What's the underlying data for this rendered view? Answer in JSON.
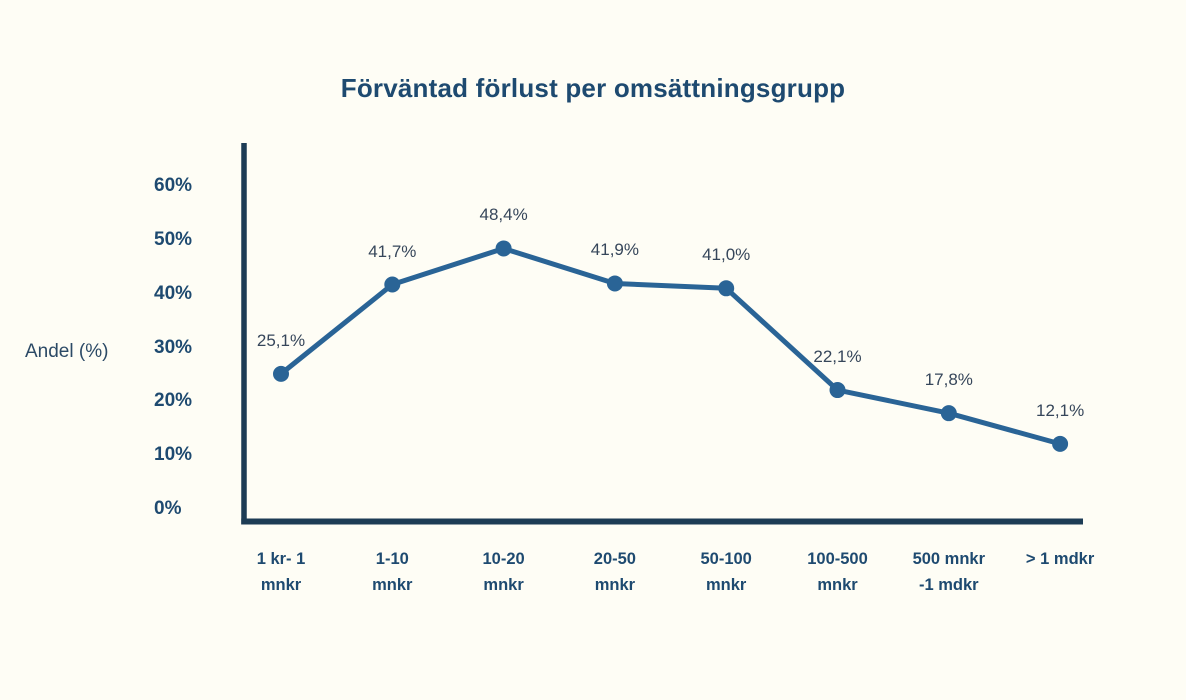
{
  "chart_data": {
    "type": "line",
    "title": "Förväntad förlust per omsättningsgrupp",
    "ylabel": "Andel (%)",
    "xlabel": "",
    "categories": [
      "1 kr- 1\nmnkr",
      "1-10\nmnkr",
      "10-20\nmnkr",
      "20-50\nmnkr",
      "50-100\nmnkr",
      "100-500\nmnkr",
      "500 mnkr\n-1 mdkr",
      "> 1 mdkr"
    ],
    "values": [
      25.1,
      41.7,
      48.4,
      41.9,
      41.0,
      22.1,
      17.8,
      12.1
    ],
    "value_labels": [
      "25,1%",
      "41,7%",
      "48,4%",
      "41,9%",
      "41,0%",
      "22,1%",
      "17,8%",
      "12,1%"
    ],
    "ytick_values": [
      0,
      10,
      20,
      30,
      40,
      50,
      60
    ],
    "ytick_labels": [
      "0%",
      "10%",
      "20%",
      "30%",
      "40%",
      "50%",
      "60%"
    ],
    "ylim": [
      0,
      68
    ],
    "grid": false,
    "legend": "none",
    "marker": "filled-circle",
    "data_labels_position": "above-points"
  },
  "theme": {
    "background": "#fefdf5",
    "title_color": "#1e4a70",
    "tick_color": "#1e4a70",
    "axis_color": "#1d3c55",
    "line_color": "#2a6496",
    "data_label_color": "#36465a",
    "ylabel_color": "#2c4a66"
  }
}
